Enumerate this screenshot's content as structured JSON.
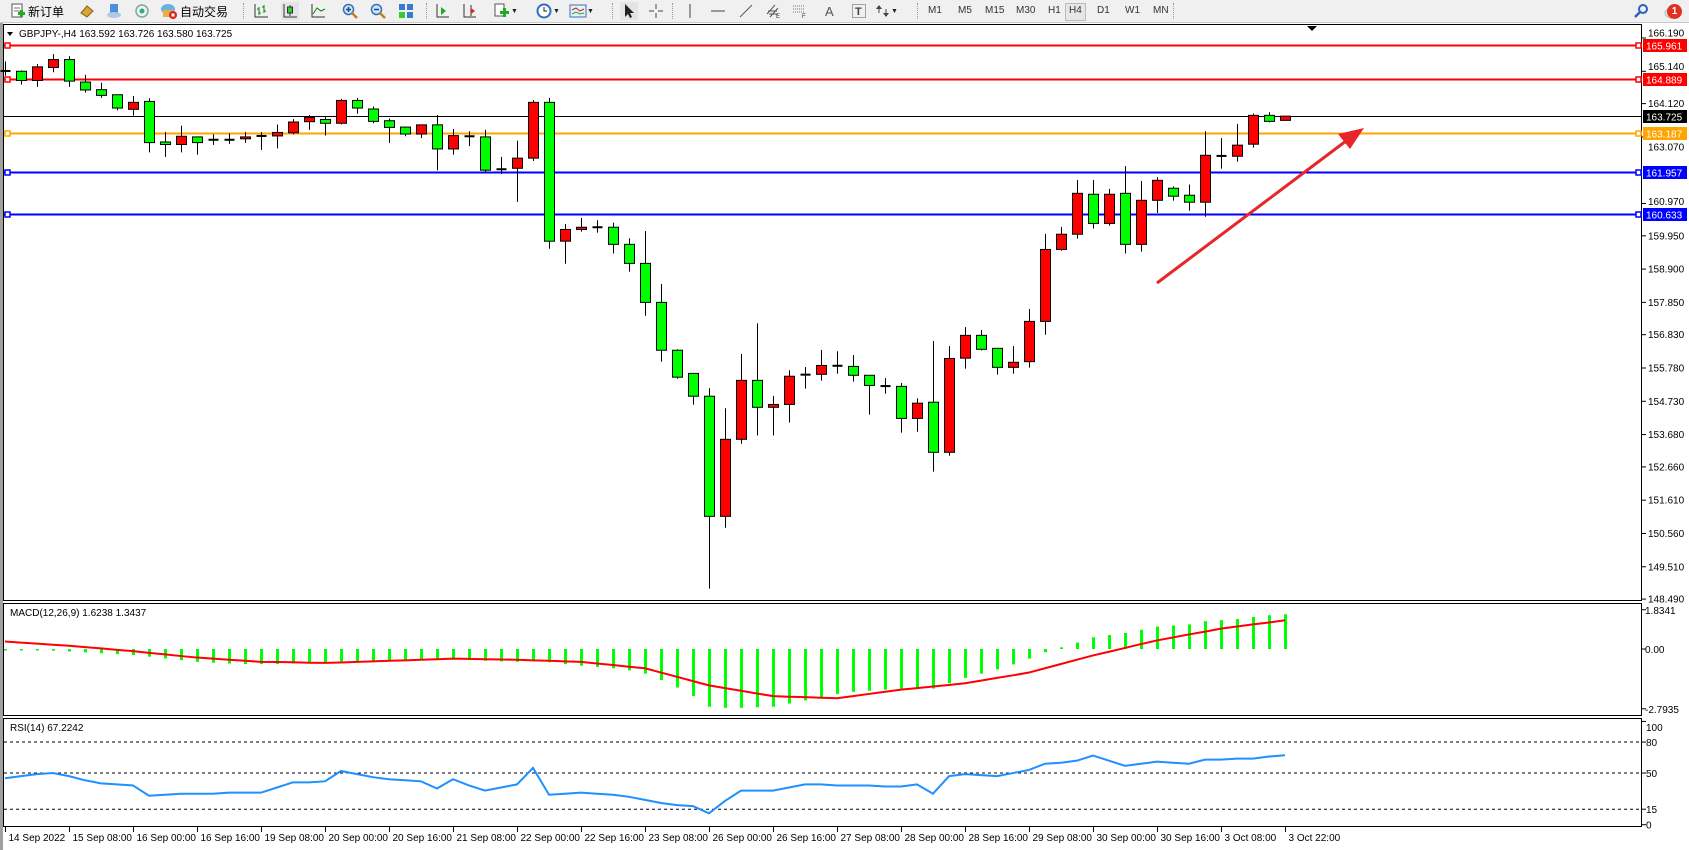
{
  "toolbar": {
    "new_order": "新订单",
    "auto_trading": "自动交易",
    "timeframes": [
      "M1",
      "M5",
      "M15",
      "M30",
      "H1",
      "H4",
      "D1",
      "W1",
      "MN"
    ],
    "active_timeframe": "H4",
    "notification_count": "1",
    "icons": [
      "new-order-icon",
      "market-watch-icon",
      "navigator-icon",
      "signals-icon",
      "auto-trading-icon",
      "bar-chart-icon",
      "candlestick-icon",
      "line-chart-icon",
      "zoom-in-icon",
      "zoom-out-icon",
      "tile-windows-icon",
      "autoscroll-icon",
      "chart-shift-icon",
      "indicators-icon",
      "periods-icon",
      "templates-icon",
      "cursor-icon",
      "crosshair-icon",
      "vertical-line-icon",
      "horizontal-line-icon",
      "trendline-icon",
      "equidistant-channel-icon",
      "fibonacci-icon",
      "text-icon",
      "text-label-icon",
      "arrows-icon",
      "search-icon",
      "notification-icon"
    ]
  },
  "chart": {
    "symbol_info": "GBPJPY-,H4  163.592 163.726 163.580 163.725"
  },
  "chart_data": {
    "type": "candlestick",
    "symbol": "GBPJPY-",
    "timeframe": "H4",
    "bull_color": "#ff0000",
    "bear_color": "#00ff00",
    "ylim": [
      148.49,
      166.19
    ],
    "price_ticks": [
      "166.190",
      "165.140",
      "164.120",
      "163.070",
      "160.970",
      "159.950",
      "158.900",
      "157.850",
      "156.830",
      "155.780",
      "154.730",
      "153.680",
      "152.660",
      "151.610",
      "150.560",
      "149.510",
      "148.490"
    ],
    "time_labels": [
      "14 Sep 2022",
      "15 Sep 08:00",
      "16 Sep 00:00",
      "16 Sep 16:00",
      "19 Sep 08:00",
      "20 Sep 00:00",
      "20 Sep 16:00",
      "21 Sep 08:00",
      "22 Sep 00:00",
      "22 Sep 16:00",
      "23 Sep 08:00",
      "26 Sep 00:00",
      "26 Sep 16:00",
      "27 Sep 08:00",
      "28 Sep 00:00",
      "28 Sep 16:00",
      "29 Sep 08:00",
      "30 Sep 00:00",
      "30 Sep 16:00",
      "3 Oct 08:00",
      "3 Oct 22:00"
    ],
    "candles_ohlc": [
      [
        165.15,
        165.45,
        165.0,
        165.15
      ],
      [
        165.14,
        165.17,
        164.72,
        164.85
      ],
      [
        164.85,
        165.37,
        164.65,
        165.28
      ],
      [
        165.26,
        165.68,
        165.11,
        165.51
      ],
      [
        165.51,
        165.62,
        164.65,
        164.83
      ],
      [
        164.8,
        165.03,
        164.47,
        164.55
      ],
      [
        164.56,
        164.78,
        164.3,
        164.38
      ],
      [
        164.4,
        164.4,
        163.91,
        163.98
      ],
      [
        163.94,
        164.36,
        163.74,
        164.16
      ],
      [
        164.19,
        164.29,
        162.58,
        162.89
      ],
      [
        162.91,
        163.22,
        162.44,
        162.83
      ],
      [
        162.83,
        163.42,
        162.58,
        163.09
      ],
      [
        163.07,
        163.07,
        162.51,
        162.89
      ],
      [
        162.98,
        163.15,
        162.82,
        162.98
      ],
      [
        162.98,
        163.18,
        162.85,
        162.98
      ],
      [
        163.01,
        163.22,
        162.88,
        163.07
      ],
      [
        163.1,
        163.22,
        162.66,
        163.1
      ],
      [
        163.1,
        163.46,
        162.71,
        163.21
      ],
      [
        163.2,
        163.63,
        163.15,
        163.54
      ],
      [
        163.55,
        163.76,
        163.29,
        163.68
      ],
      [
        163.62,
        163.73,
        163.12,
        163.5
      ],
      [
        163.5,
        164.27,
        163.46,
        164.22
      ],
      [
        164.22,
        164.3,
        163.8,
        163.98
      ],
      [
        163.95,
        164.03,
        163.5,
        163.56
      ],
      [
        163.58,
        163.65,
        162.88,
        163.37
      ],
      [
        163.38,
        163.38,
        163.09,
        163.16
      ],
      [
        163.16,
        163.45,
        163.03,
        163.45
      ],
      [
        163.45,
        163.76,
        162.02,
        162.69
      ],
      [
        162.69,
        163.32,
        162.51,
        163.11
      ],
      [
        163.09,
        163.25,
        162.78,
        163.09
      ],
      [
        163.07,
        163.29,
        161.97,
        162.02
      ],
      [
        162.05,
        162.44,
        161.9,
        162.05
      ],
      [
        162.08,
        162.95,
        161.02,
        162.4
      ],
      [
        162.4,
        164.23,
        162.31,
        164.16
      ],
      [
        164.16,
        164.3,
        159.54,
        159.78
      ],
      [
        159.78,
        160.32,
        159.07,
        160.15
      ],
      [
        160.15,
        160.51,
        160.08,
        160.22
      ],
      [
        160.22,
        160.44,
        160.05,
        160.22
      ],
      [
        160.22,
        160.36,
        159.39,
        159.68
      ],
      [
        159.68,
        159.87,
        158.82,
        159.08
      ],
      [
        159.08,
        160.1,
        157.43,
        157.85
      ],
      [
        157.85,
        158.43,
        155.98,
        156.34
      ],
      [
        156.34,
        156.37,
        155.44,
        155.49
      ],
      [
        155.61,
        155.61,
        154.62,
        154.89
      ],
      [
        154.89,
        155.14,
        148.82,
        151.1
      ],
      [
        151.1,
        154.51,
        150.74,
        153.53
      ],
      [
        153.53,
        156.22,
        153.39,
        155.39
      ],
      [
        155.39,
        157.19,
        153.65,
        154.54
      ],
      [
        154.54,
        154.9,
        153.65,
        154.63
      ],
      [
        154.63,
        155.71,
        154.06,
        155.52
      ],
      [
        155.57,
        155.81,
        155.13,
        155.57
      ],
      [
        155.58,
        156.35,
        155.38,
        155.86
      ],
      [
        155.85,
        156.31,
        155.6,
        155.85
      ],
      [
        155.83,
        156.19,
        155.35,
        155.55
      ],
      [
        155.55,
        155.55,
        154.31,
        155.23
      ],
      [
        155.21,
        155.46,
        154.97,
        155.21
      ],
      [
        155.2,
        155.31,
        153.74,
        154.19
      ],
      [
        154.19,
        154.82,
        153.77,
        154.67
      ],
      [
        154.7,
        156.63,
        152.51,
        153.12
      ],
      [
        153.12,
        156.47,
        153.01,
        156.08
      ],
      [
        156.09,
        157.07,
        155.76,
        156.81
      ],
      [
        156.81,
        156.98,
        156.33,
        156.37
      ],
      [
        156.4,
        156.4,
        155.57,
        155.8
      ],
      [
        155.8,
        156.47,
        155.6,
        155.96
      ],
      [
        155.98,
        157.64,
        155.79,
        157.25
      ],
      [
        157.25,
        160.01,
        156.83,
        159.52
      ],
      [
        159.52,
        160.23,
        159.48,
        160.0
      ],
      [
        160.0,
        161.71,
        159.86,
        161.29
      ],
      [
        161.26,
        161.71,
        160.18,
        160.34
      ],
      [
        160.34,
        161.43,
        160.27,
        161.26
      ],
      [
        161.29,
        162.15,
        159.39,
        159.68
      ],
      [
        159.68,
        161.68,
        159.45,
        161.07
      ],
      [
        161.07,
        161.8,
        160.67,
        161.7
      ],
      [
        161.45,
        161.51,
        161.06,
        161.2
      ],
      [
        161.23,
        161.57,
        160.74,
        161.01
      ],
      [
        161.01,
        163.25,
        160.55,
        162.49
      ],
      [
        162.47,
        163.03,
        162.07,
        162.47
      ],
      [
        162.46,
        163.48,
        162.29,
        162.81
      ],
      [
        162.84,
        163.81,
        162.73,
        163.75
      ],
      [
        163.75,
        163.85,
        163.53,
        163.56
      ],
      [
        163.592,
        163.726,
        163.58,
        163.725
      ]
    ],
    "horizontal_lines": [
      {
        "price": 165.961,
        "label": "165.961",
        "color": "#ff0000"
      },
      {
        "price": 164.889,
        "label": "164.889",
        "color": "#ff0000"
      },
      {
        "price": 163.187,
        "label": "163.187",
        "color": "#ffa500"
      },
      {
        "price": 161.957,
        "label": "161.957",
        "color": "#0000ff"
      },
      {
        "price": 160.633,
        "label": "160.633",
        "color": "#0000ff"
      }
    ],
    "current_price": {
      "price": 163.725,
      "label": "163.725",
      "color": "#000000"
    },
    "trend_arrow_color": "#e8262a",
    "macd": {
      "label": "MACD(12,26,9) 1.6238 1.3437",
      "ylim": [
        -2.7935,
        1.8341
      ],
      "ticks": [
        "1.8341",
        "0.00",
        "-2.7935"
      ],
      "histogram_color": "#00ff00",
      "signal_color": "#ff0000",
      "histogram": [
        -0.02,
        -0.03,
        -0.05,
        -0.08,
        -0.12,
        -0.16,
        -0.2,
        -0.24,
        -0.28,
        -0.36,
        -0.44,
        -0.52,
        -0.6,
        -0.64,
        -0.68,
        -0.7,
        -0.7,
        -0.7,
        -0.68,
        -0.66,
        -0.64,
        -0.58,
        -0.56,
        -0.55,
        -0.55,
        -0.54,
        -0.52,
        -0.52,
        -0.5,
        -0.52,
        -0.55,
        -0.58,
        -0.6,
        -0.5,
        -0.62,
        -0.7,
        -0.78,
        -0.84,
        -0.9,
        -1.0,
        -1.15,
        -1.45,
        -1.8,
        -2.2,
        -2.7,
        -2.75,
        -2.75,
        -2.72,
        -2.7,
        -2.55,
        -2.4,
        -2.25,
        -2.1,
        -2.0,
        -1.95,
        -1.9,
        -1.85,
        -1.82,
        -1.85,
        -1.6,
        -1.35,
        -1.15,
        -0.95,
        -0.72,
        -0.45,
        -0.15,
        0.08,
        0.3,
        0.55,
        0.65,
        0.75,
        0.9,
        1.05,
        1.1,
        1.15,
        1.3,
        1.35,
        1.4,
        1.5,
        1.58,
        1.6238
      ],
      "signal": [
        0.35,
        0.3,
        0.25,
        0.2,
        0.15,
        0.09,
        0.03,
        -0.04,
        -0.1,
        -0.18,
        -0.25,
        -0.33,
        -0.4,
        -0.45,
        -0.5,
        -0.55,
        -0.6,
        -0.61,
        -0.62,
        -0.64,
        -0.65,
        -0.63,
        -0.6,
        -0.58,
        -0.55,
        -0.53,
        -0.5,
        -0.48,
        -0.45,
        -0.46,
        -0.48,
        -0.49,
        -0.5,
        -0.53,
        -0.55,
        -0.58,
        -0.6,
        -0.68,
        -0.75,
        -0.83,
        -0.9,
        -1.1,
        -1.3,
        -1.5,
        -1.7,
        -1.83,
        -1.95,
        -2.08,
        -2.2,
        -2.23,
        -2.25,
        -2.28,
        -2.3,
        -2.2,
        -2.1,
        -2.0,
        -1.9,
        -1.83,
        -1.75,
        -1.68,
        -1.6,
        -1.48,
        -1.35,
        -1.23,
        -1.1,
        -0.9,
        -0.7,
        -0.5,
        -0.3,
        -0.13,
        0.05,
        0.23,
        0.4,
        0.54,
        0.68,
        0.81,
        0.95,
        1.05,
        1.15,
        1.24,
        1.3437
      ]
    },
    "rsi": {
      "label": "RSI(14) 67.2242",
      "ylim": [
        0,
        100
      ],
      "ticks": [
        "100",
        "80",
        "50",
        "15",
        "0"
      ],
      "levels": [
        80,
        50,
        15
      ],
      "color": "#1e90ff",
      "values": [
        45,
        47,
        49,
        50,
        47,
        43,
        40,
        39,
        38,
        28,
        29,
        30,
        30,
        30,
        31,
        31,
        31,
        36,
        41,
        41,
        42,
        52,
        49,
        46,
        44,
        43,
        42,
        35,
        44,
        38,
        33,
        36,
        39,
        55,
        29,
        30,
        31,
        30,
        29,
        27,
        24,
        21,
        19,
        18,
        11,
        23,
        33,
        33,
        33,
        36,
        39,
        39,
        38,
        38,
        38,
        37,
        37,
        39,
        30,
        47,
        49,
        48,
        47,
        50,
        53,
        59,
        60,
        62,
        67,
        62,
        57,
        59,
        61,
        60,
        59,
        63,
        63,
        64,
        64,
        66,
        67.2242
      ]
    }
  }
}
